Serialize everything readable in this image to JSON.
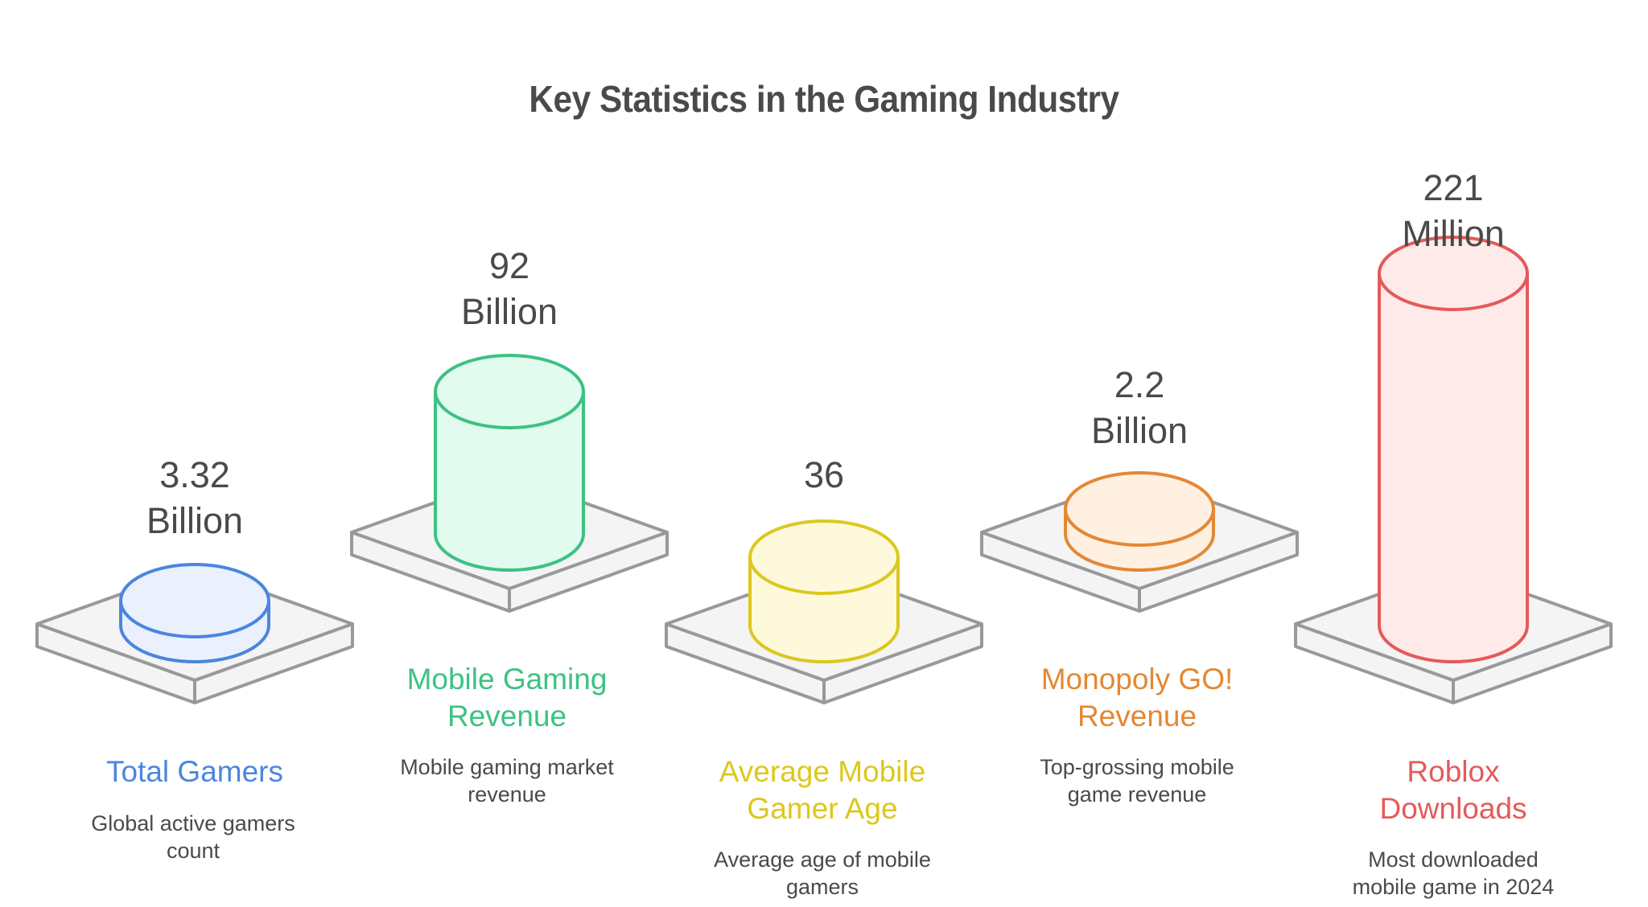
{
  "title": "Key Statistics in the Gaming Industry",
  "colors": {
    "text": "#4a4a4a",
    "platform_fill": "#f4f4f4",
    "platform_stroke": "#999999"
  },
  "stats": [
    {
      "value_line1": "3.32",
      "value_line2": "Billion",
      "heading": "Total Gamers",
      "heading_lines": [
        "Total Gamers"
      ],
      "description": "Global active gamers count",
      "description_lines": [
        "Global active gamers",
        "count"
      ],
      "stroke": "#4a86e0",
      "fill": "#eaf1fd"
    },
    {
      "value_line1": "92",
      "value_line2": "Billion",
      "heading": "Mobile Gaming Revenue",
      "heading_lines": [
        "Mobile Gaming",
        "Revenue"
      ],
      "description": "Mobile gaming market revenue",
      "description_lines": [
        "Mobile gaming market",
        "revenue"
      ],
      "stroke": "#3cc283",
      "fill": "#e2fbef"
    },
    {
      "value_line1": "36",
      "value_line2": "",
      "heading": "Average Mobile Gamer Age",
      "heading_lines": [
        "Average Mobile",
        "Gamer Age"
      ],
      "description": "Average age of mobile gamers",
      "description_lines": [
        "Average age of mobile",
        "gamers"
      ],
      "stroke": "#dcc81e",
      "fill": "#fff9dc"
    },
    {
      "value_line1": "2.2",
      "value_line2": "Billion",
      "heading": "Monopoly GO! Revenue",
      "heading_lines": [
        "Monopoly GO!",
        "Revenue"
      ],
      "description": "Top-grossing mobile game revenue",
      "description_lines": [
        "Top-grossing mobile",
        "game revenue"
      ],
      "stroke": "#e38833",
      "fill": "#fff0e2"
    },
    {
      "value_line1": "221",
      "value_line2": "Million",
      "heading": "Roblox Downloads",
      "heading_lines": [
        "Roblox",
        "Downloads"
      ],
      "description": "Most downloaded mobile game in 2024",
      "description_lines": [
        "Most downloaded",
        "mobile game in 2024"
      ],
      "stroke": "#e55a5a",
      "fill": "#ffeaea"
    }
  ],
  "chart_data": {
    "type": "bar",
    "title": "Key Statistics in the Gaming Industry",
    "categories": [
      "Total Gamers",
      "Mobile Gaming Revenue",
      "Average Mobile Gamer Age",
      "Monopoly GO! Revenue",
      "Roblox Downloads"
    ],
    "values": [
      3.32,
      92,
      36,
      2.2,
      221
    ],
    "units": [
      "Billion",
      "Billion",
      "",
      "Billion",
      "Million"
    ],
    "descriptions": [
      "Global active gamers count",
      "Mobile gaming market revenue",
      "Average age of mobile gamers",
      "Top-grossing mobile game revenue",
      "Most downloaded mobile game in 2024"
    ],
    "xlabel": "",
    "ylabel": "",
    "grid": false,
    "legend": "none"
  }
}
